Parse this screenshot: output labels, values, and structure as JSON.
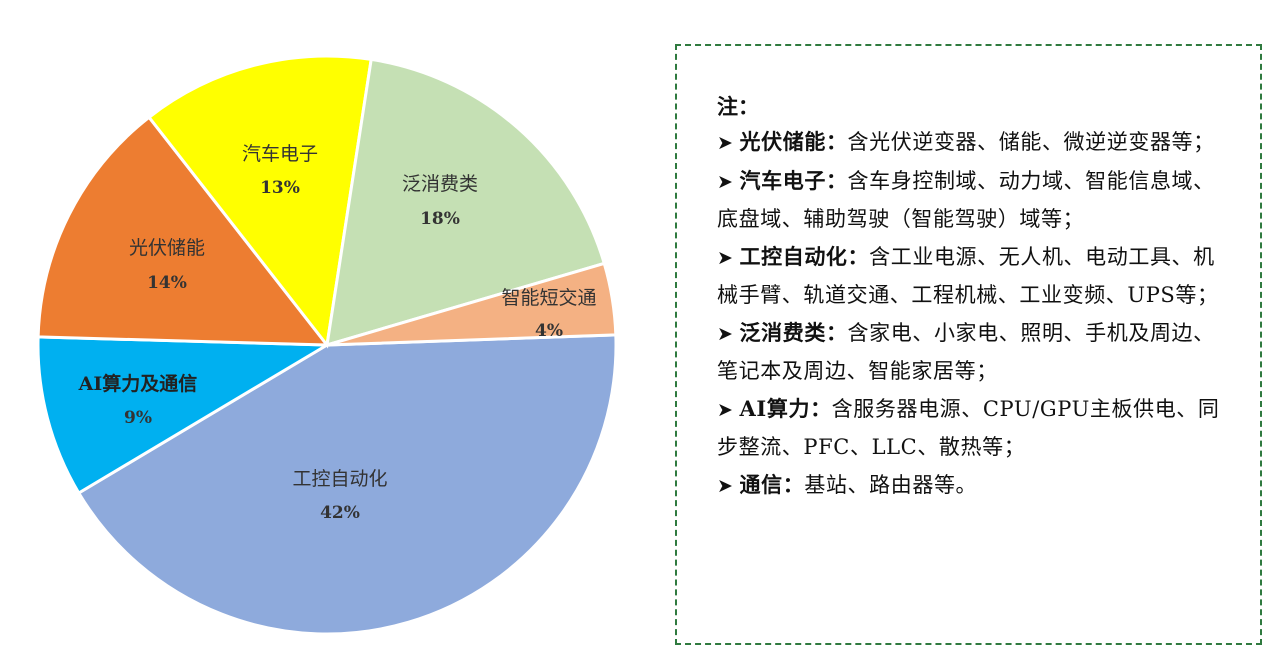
{
  "chart_data": {
    "type": "pie",
    "slices": [
      {
        "label": "工控自动化",
        "pct_label": "42%",
        "value": 42,
        "color": "#8eaadc"
      },
      {
        "label": "AI算力及通信",
        "pct_label": "9%",
        "value": 9,
        "color": "#00b0f0"
      },
      {
        "label": "光伏储能",
        "pct_label": "14%",
        "value": 14,
        "color": "#ed7d31"
      },
      {
        "label": "汽车电子",
        "pct_label": "13%",
        "value": 13,
        "color": "#ffff00"
      },
      {
        "label": "泛消费类",
        "pct_label": "18%",
        "value": 18,
        "color": "#c5e0b4"
      },
      {
        "label": "智能短交通",
        "pct_label": "4%",
        "value": 4,
        "color": "#f4b183"
      }
    ]
  },
  "note": {
    "title": "注：",
    "items": [
      {
        "arrow": "➤",
        "term": "光伏储能",
        "sep": "：",
        "text": "含光伏逆变器、储能、微逆逆变器等；"
      },
      {
        "arrow": "➤",
        "term": "汽车电子",
        "sep": "：",
        "text": "含车身控制域、动力域、智能信息域、底盘域、辅助驾驶（智能驾驶）域等；"
      },
      {
        "arrow": "➤",
        "term": "工控自动化",
        "sep": "：",
        "text": "含工业电源、无人机、电动工具、机械手臂、轨道交通、工程机械、工业变频、UPS等；"
      },
      {
        "arrow": "➤",
        "term": "泛消费类",
        "sep": "：",
        "text": "含家电、小家电、照明、手机及周边、笔记本及周边、智能家居等；"
      },
      {
        "arrow": "➤",
        "term": "AI算力",
        "sep": "：",
        "text": "含服务器电源、CPU/GPU主板供电、同步整流、PFC、LLC、散热等；"
      },
      {
        "arrow": "➤",
        "term": "通信",
        "sep": "：",
        "text": "基站、路由器等。"
      }
    ]
  }
}
